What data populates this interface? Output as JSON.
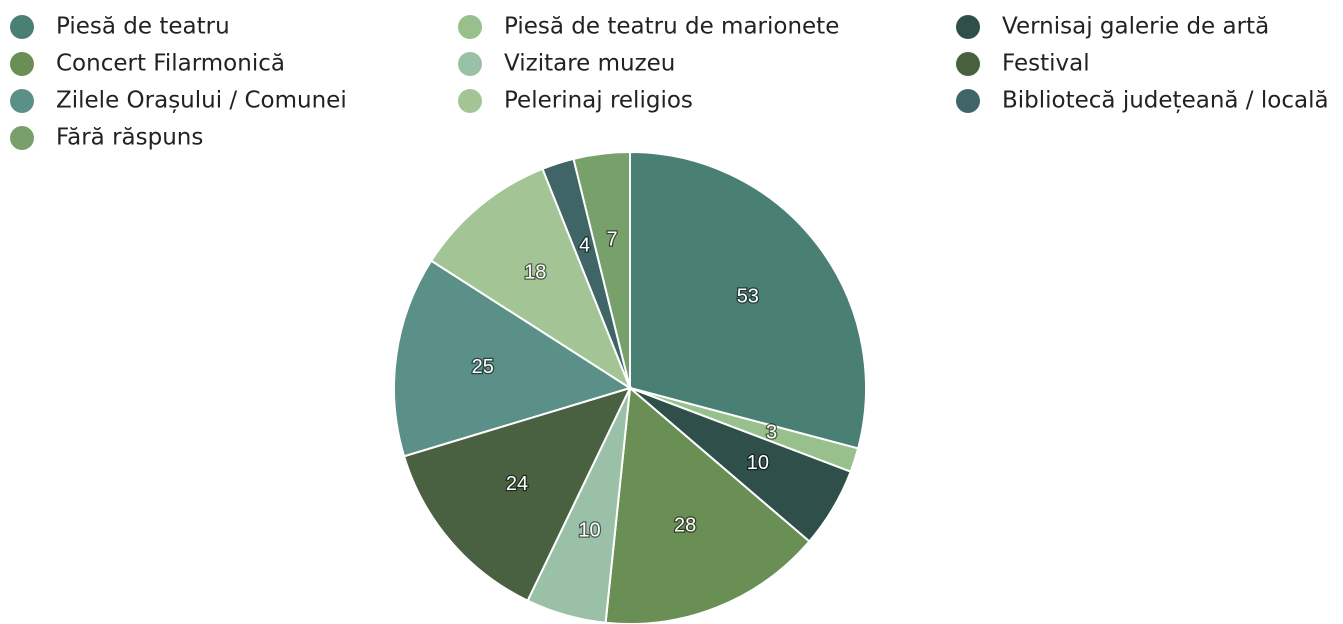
{
  "chart_data": {
    "type": "pie",
    "categories": [
      "Piesă de teatru",
      "Piesă de teatru de marionete",
      "Vernisaj galerie de artă",
      "Concert Filarmonică",
      "Vizitare muzeu",
      "Festival",
      "Zilele Orașului / Comunei",
      "Pelerinaj religios",
      "Bibliotecă județeană / locală",
      "Fără răspuns"
    ],
    "values": [
      53,
      3,
      10,
      28,
      10,
      24,
      25,
      18,
      4,
      7
    ],
    "colors": [
      "#4a7f74",
      "#98c08c",
      "#2e4f4a",
      "#6a8f55",
      "#9bc0a8",
      "#4a6141",
      "#5b9088",
      "#a3c595",
      "#3f6566",
      "#78a06a"
    ],
    "legend": "top"
  }
}
